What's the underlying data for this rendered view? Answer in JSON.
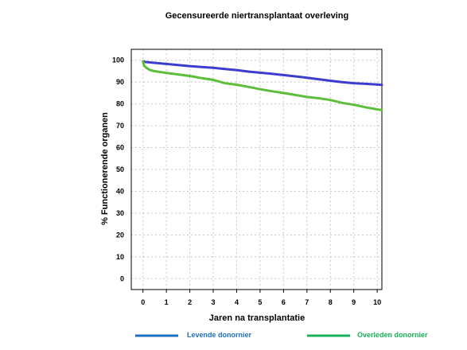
{
  "chart_data": {
    "type": "line",
    "title": "Gecensureerde niertransplantaat overleving",
    "xlabel": "Jaren na transplantatie",
    "ylabel": "% Functionerende organen",
    "xlim": [
      -0.5,
      10.2
    ],
    "ylim": [
      -5,
      105
    ],
    "x_ticks": [
      0,
      1,
      2,
      3,
      4,
      5,
      6,
      7,
      8,
      9,
      10
    ],
    "y_ticks": [
      0,
      10,
      20,
      30,
      40,
      50,
      60,
      70,
      80,
      90,
      100
    ],
    "grid": true,
    "legend_position": "bottom",
    "series": [
      {
        "name": "Levende donornier",
        "color": "#3c3ccf",
        "legend_color": "#1f6fbf",
        "x": [
          0,
          0.1,
          0.5,
          1,
          1.5,
          2,
          2.5,
          3,
          3.5,
          4,
          4.5,
          5,
          5.5,
          6,
          6.5,
          7,
          7.5,
          8,
          8.5,
          9,
          9.5,
          10,
          10.2
        ],
        "y": [
          99.5,
          99.2,
          98.8,
          98.3,
          97.8,
          97.3,
          96.9,
          96.5,
          96.0,
          95.5,
          94.8,
          94.3,
          93.8,
          93.2,
          92.6,
          92.0,
          91.3,
          90.6,
          90.0,
          89.5,
          89.2,
          88.9,
          88.7
        ]
      },
      {
        "name": "Overleden donornier",
        "color": "#5cbf3a",
        "legend_color": "#17b25a",
        "x": [
          0,
          0.05,
          0.15,
          0.3,
          0.5,
          1,
          1.5,
          2,
          2.5,
          3,
          3.5,
          4,
          4.5,
          5,
          5.5,
          6,
          6.5,
          7,
          7.5,
          8,
          8.5,
          9,
          9.5,
          10,
          10.2
        ],
        "y": [
          99.5,
          97.5,
          96.5,
          95.5,
          95.0,
          94.2,
          93.5,
          92.8,
          91.8,
          91.0,
          89.5,
          88.8,
          87.8,
          86.7,
          85.8,
          85.0,
          84.1,
          83.2,
          82.6,
          81.8,
          80.5,
          79.6,
          78.5,
          77.5,
          77.2
        ]
      }
    ]
  }
}
